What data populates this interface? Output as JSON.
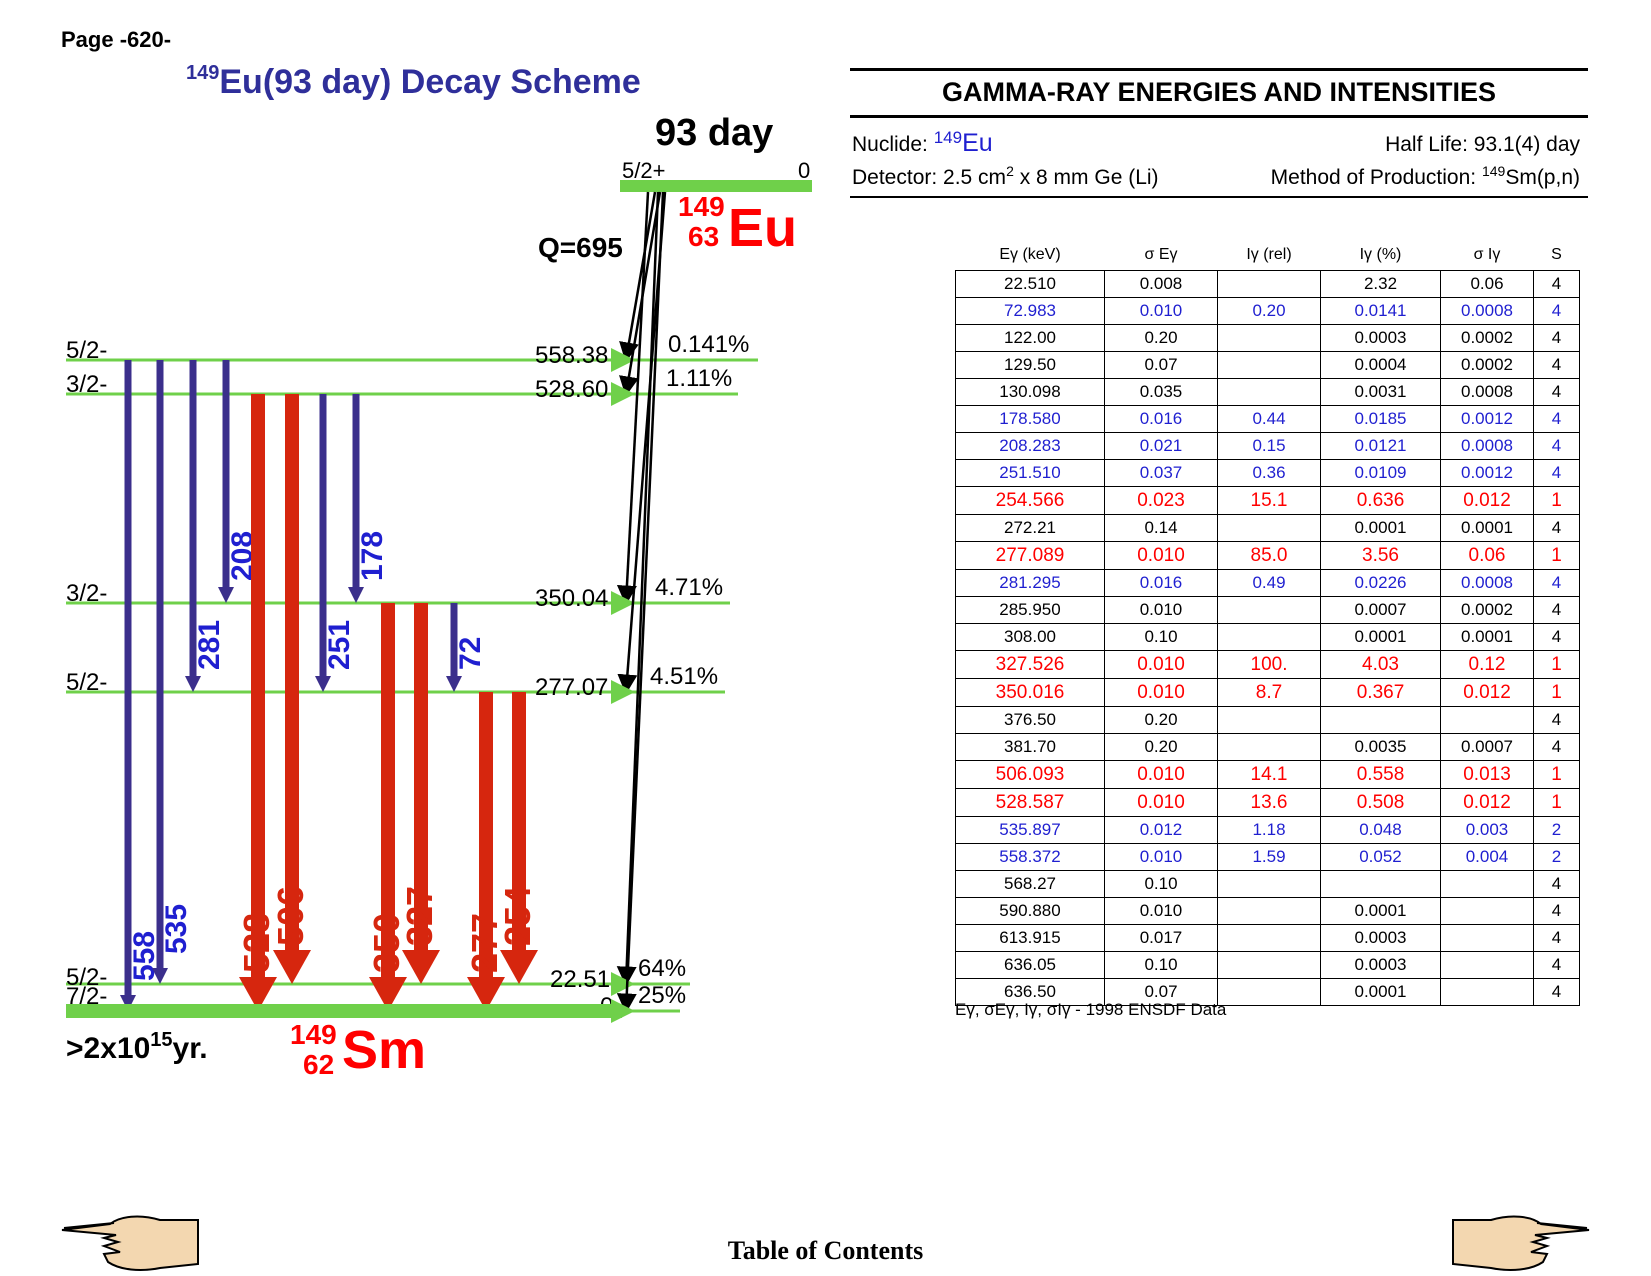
{
  "page_number": "Page -620-",
  "scheme": {
    "title_mass": "149",
    "title_rest": "Eu(93 day) Decay Scheme",
    "parent_half_life": "93 day",
    "parent_spin": "5/2+",
    "parent_energy": "0",
    "parent_mass": "149",
    "parent_z": "63",
    "parent_symbol": "Eu",
    "q_value": "Q=695",
    "daughter_mass": "149",
    "daughter_z": "62",
    "daughter_symbol": "Sm",
    "daughter_half_life": ">2x10",
    "daughter_half_life_exp": "15",
    "daughter_half_life_unit": "yr.",
    "levels": [
      {
        "spin": "5/2-",
        "energy": "558.38",
        "branch": "0.141%"
      },
      {
        "spin": "3/2-",
        "energy": "528.60",
        "branch": "1.11%"
      },
      {
        "spin": "3/2-",
        "energy": "350.04",
        "branch": "4.71%"
      },
      {
        "spin": "5/2-",
        "energy": "277.07",
        "branch": "4.51%"
      },
      {
        "spin": "5/2-",
        "energy": "22.51",
        "branch": "64%"
      },
      {
        "spin": "7/2-",
        "energy": "0",
        "branch": "25%"
      }
    ],
    "transitions": [
      {
        "label": "558",
        "from": 0,
        "to": 5,
        "intensity": "weak"
      },
      {
        "label": "535",
        "from": 0,
        "to": 4,
        "intensity": "weak"
      },
      {
        "label": "281",
        "from": 0,
        "to": 3,
        "intensity": "weak"
      },
      {
        "label": "208",
        "from": 0,
        "to": 2,
        "intensity": "weak"
      },
      {
        "label": "528",
        "from": 1,
        "to": 5,
        "intensity": "strong"
      },
      {
        "label": "506",
        "from": 1,
        "to": 4,
        "intensity": "strong"
      },
      {
        "label": "251",
        "from": 1,
        "to": 3,
        "intensity": "weak"
      },
      {
        "label": "178",
        "from": 1,
        "to": 2,
        "intensity": "weak"
      },
      {
        "label": "350",
        "from": 2,
        "to": 5,
        "intensity": "strong"
      },
      {
        "label": "327",
        "from": 2,
        "to": 4,
        "intensity": "strong"
      },
      {
        "label": "72",
        "from": 2,
        "to": 3,
        "intensity": "weak"
      },
      {
        "label": "277",
        "from": 3,
        "to": 5,
        "intensity": "strong"
      },
      {
        "label": "254",
        "from": 3,
        "to": 4,
        "intensity": "strong"
      }
    ],
    "colors": {
      "level": "#6fd04a",
      "strong": "#d6260e",
      "weak": "#3b2f8c",
      "weak_label": "#1f1fd0",
      "nuclide": "#ff0000",
      "title": "#2f2f9a"
    }
  },
  "gamma": {
    "title": "GAMMA-RAY ENERGIES AND INTENSITIES",
    "nuclide_label": "Nuclide: ",
    "nuclide_mass": "149",
    "nuclide_symbol": "Eu",
    "half_life": "Half Life: 93.1(4) day",
    "detector_pre": "Detector: 2.5 cm",
    "detector_exp": "2",
    "detector_post": " x 8 mm Ge (Li)",
    "method_pre": "Method of Production: ",
    "method_mass": "149",
    "method_post": "Sm(p,n)",
    "columns": [
      "Eγ (keV)",
      "σ Eγ",
      "Iγ (rel)",
      "Iγ (%)",
      "σ Iγ",
      "S"
    ],
    "rows": [
      {
        "c": "black",
        "v": [
          "22.510",
          "0.008",
          "",
          "2.32",
          "0.06",
          "4"
        ]
      },
      {
        "c": "blue",
        "v": [
          "72.983",
          "0.010",
          "0.20",
          "0.0141",
          "0.0008",
          "4"
        ]
      },
      {
        "c": "black",
        "v": [
          "122.00",
          "0.20",
          "",
          "0.0003",
          "0.0002",
          "4"
        ]
      },
      {
        "c": "black",
        "v": [
          "129.50",
          "0.07",
          "",
          "0.0004",
          "0.0002",
          "4"
        ]
      },
      {
        "c": "black",
        "v": [
          "130.098",
          "0.035",
          "",
          "0.0031",
          "0.0008",
          "4"
        ]
      },
      {
        "c": "blue",
        "v": [
          "178.580",
          "0.016",
          "0.44",
          "0.0185",
          "0.0012",
          "4"
        ]
      },
      {
        "c": "blue",
        "v": [
          "208.283",
          "0.021",
          "0.15",
          "0.0121",
          "0.0008",
          "4"
        ]
      },
      {
        "c": "blue",
        "v": [
          "251.510",
          "0.037",
          "0.36",
          "0.0109",
          "0.0012",
          "4"
        ]
      },
      {
        "c": "red",
        "v": [
          "254.566",
          "0.023",
          "15.1",
          "0.636",
          "0.012",
          "1"
        ]
      },
      {
        "c": "black",
        "v": [
          "272.21",
          "0.14",
          "",
          "0.0001",
          "0.0001",
          "4"
        ]
      },
      {
        "c": "red",
        "v": [
          "277.089",
          "0.010",
          "85.0",
          "3.56",
          "0.06",
          "1"
        ]
      },
      {
        "c": "blue",
        "v": [
          "281.295",
          "0.016",
          "0.49",
          "0.0226",
          "0.0008",
          "4"
        ]
      },
      {
        "c": "black",
        "v": [
          "285.950",
          "0.010",
          "",
          "0.0007",
          "0.0002",
          "4"
        ]
      },
      {
        "c": "black",
        "v": [
          "308.00",
          "0.10",
          "",
          "0.0001",
          "0.0001",
          "4"
        ]
      },
      {
        "c": "red",
        "v": [
          "327.526",
          "0.010",
          "100.",
          "4.03",
          "0.12",
          "1"
        ]
      },
      {
        "c": "red",
        "v": [
          "350.016",
          "0.010",
          "8.7",
          "0.367",
          "0.012",
          "1"
        ]
      },
      {
        "c": "black",
        "v": [
          "376.50",
          "0.20",
          "",
          "",
          "",
          "4"
        ]
      },
      {
        "c": "black",
        "v": [
          "381.70",
          "0.20",
          "",
          "0.0035",
          "0.0007",
          "4"
        ]
      },
      {
        "c": "red",
        "v": [
          "506.093",
          "0.010",
          "14.1",
          "0.558",
          "0.013",
          "1"
        ]
      },
      {
        "c": "red",
        "v": [
          "528.587",
          "0.010",
          "13.6",
          "0.508",
          "0.012",
          "1"
        ]
      },
      {
        "c": "blue",
        "v": [
          "535.897",
          "0.012",
          "1.18",
          "0.048",
          "0.003",
          "2"
        ]
      },
      {
        "c": "blue",
        "v": [
          "558.372",
          "0.010",
          "1.59",
          "0.052",
          "0.004",
          "2"
        ]
      },
      {
        "c": "black",
        "v": [
          "568.27",
          "0.10",
          "",
          "",
          "",
          "4"
        ]
      },
      {
        "c": "black",
        "v": [
          "590.880",
          "0.010",
          "",
          "0.0001",
          "",
          "4"
        ]
      },
      {
        "c": "black",
        "v": [
          "613.915",
          "0.017",
          "",
          "0.0003",
          "",
          "4"
        ]
      },
      {
        "c": "black",
        "v": [
          "636.05",
          "0.10",
          "",
          "0.0003",
          "",
          "4"
        ]
      },
      {
        "c": "black",
        "v": [
          "636.50",
          "0.07",
          "",
          "0.0001",
          "",
          "4"
        ]
      }
    ],
    "footnote_pre": "Eγ, σEγ, Iγ, σIγ - ",
    "footnote_src": "1998 ENSDF Data"
  },
  "nav": {
    "toc_label": "Table of Contents",
    "prev_icon": "hand-pointing-left-icon",
    "next_icon": "hand-pointing-right-icon"
  }
}
